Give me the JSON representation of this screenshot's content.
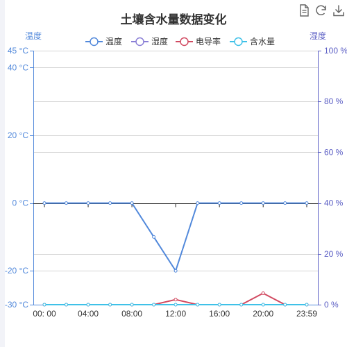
{
  "toolbox": {
    "icons": [
      "data-view-icon",
      "refresh-icon",
      "save-image-icon"
    ]
  },
  "chart_data": {
    "type": "line",
    "title": "土壤含水量数据变化",
    "xlabel": "",
    "x": [
      "00:00",
      "02:00",
      "04:00",
      "06:00",
      "08:00",
      "10:00",
      "12:00",
      "14:00",
      "16:00",
      "18:00",
      "20:00",
      "22:00",
      "23:59"
    ],
    "x_tick_labels": [
      "00:  00",
      "04:00",
      "08:00",
      "12:00",
      "16:00",
      "20:00",
      "23:59"
    ],
    "x_tick_values": [
      "00:00",
      "04:00",
      "08:00",
      "12:00",
      "16:00",
      "20:00",
      "23:59"
    ],
    "y_left": {
      "label": "温度",
      "ylim": [
        -30,
        45
      ],
      "tick_labels": [
        "45 °C",
        "40 °C",
        "20 °C",
        "0 °C",
        "-20 °C",
        "-30 °C"
      ],
      "tick_values": [
        45,
        40,
        20,
        0,
        -20,
        -30
      ],
      "color": "#5289db"
    },
    "y_right": {
      "label": "湿度",
      "ylim": [
        0,
        100
      ],
      "tick_labels": [
        "100 %",
        "80 %",
        "60 %",
        "40 %",
        "20 %",
        "0 %"
      ],
      "tick_values": [
        100,
        80,
        60,
        40,
        20,
        0
      ],
      "color": "#5b5ec4"
    },
    "series": [
      {
        "name": "温度",
        "axis": "left",
        "color": "#5289db",
        "values": [
          0,
          0,
          0,
          0,
          0,
          -10,
          -20,
          0,
          0,
          0,
          0,
          0,
          0
        ]
      },
      {
        "name": "湿度",
        "axis": "right",
        "color": "#8a7fd6",
        "values": [
          0,
          0,
          0,
          0,
          0,
          0,
          0,
          0,
          0,
          0,
          0,
          0,
          0
        ]
      },
      {
        "name": "电导率",
        "axis": "right",
        "color": "#d14a61",
        "values": [
          0,
          0,
          0,
          0,
          0,
          0,
          2,
          0,
          0,
          0,
          4.5,
          0,
          0
        ]
      },
      {
        "name": "含水量",
        "axis": "right",
        "color": "#3fc1e8",
        "values": [
          0,
          0,
          0,
          0,
          0,
          0,
          0,
          0,
          0,
          0,
          0,
          0,
          0
        ]
      }
    ],
    "legend_position": "top-center",
    "grid": true
  }
}
